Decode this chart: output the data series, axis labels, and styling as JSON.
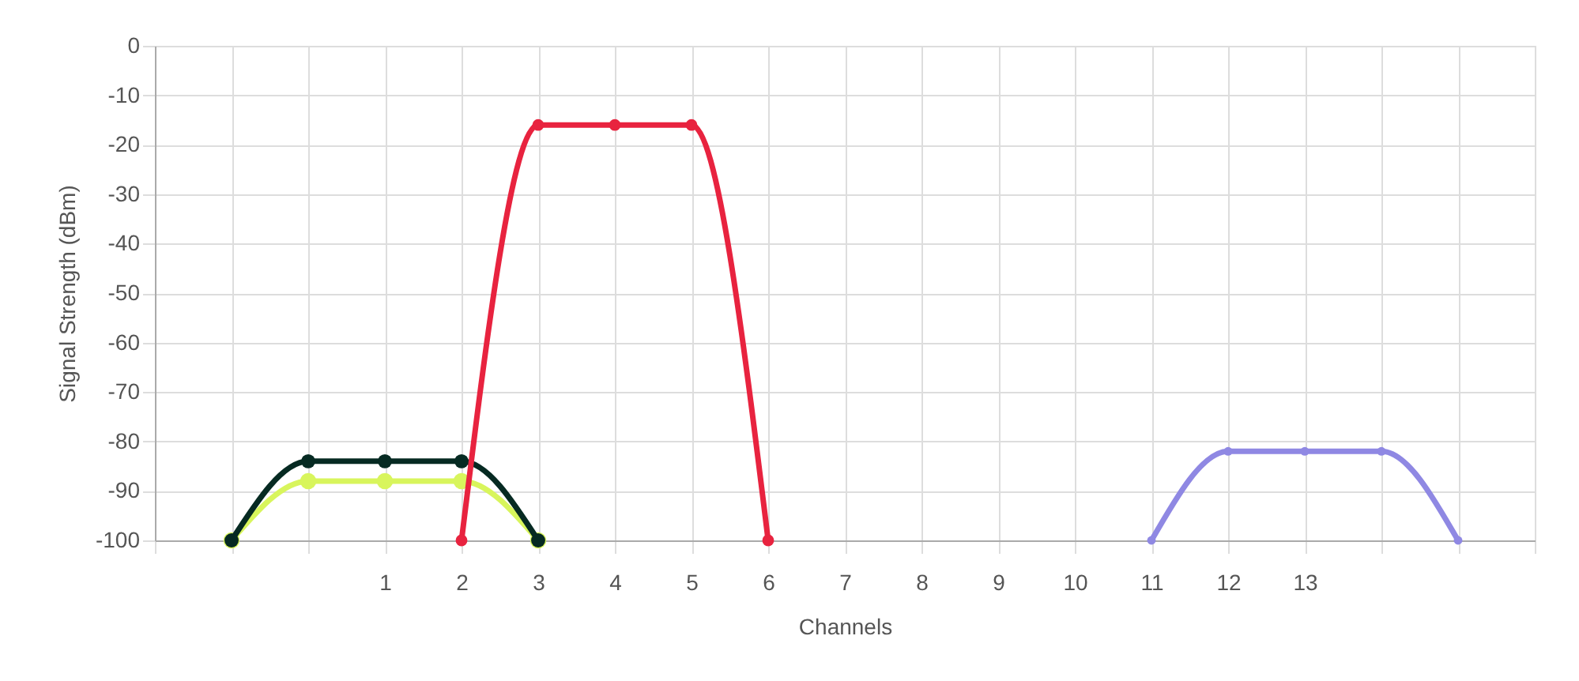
{
  "chart_data": {
    "type": "line",
    "xlabel": "Channels",
    "ylabel": "Signal Strength (dBm)",
    "xlim": [
      -2,
      16
    ],
    "ylim": [
      -100,
      0
    ],
    "xticks": [
      {
        "value": -2,
        "label": null
      },
      {
        "value": -1,
        "label": null
      },
      {
        "value": 0,
        "label": null
      },
      1,
      2,
      3,
      4,
      5,
      6,
      7,
      8,
      9,
      10,
      11,
      12,
      13,
      {
        "value": 14,
        "label": null
      },
      {
        "value": 15,
        "label": null
      },
      {
        "value": 16,
        "label": null
      }
    ],
    "yticks": [
      0,
      -10,
      -20,
      -30,
      -40,
      -50,
      -60,
      -70,
      -80,
      -90,
      -100
    ],
    "grid": true,
    "marker": "circle",
    "line_style": "solid",
    "series": [
      {
        "color": "#d8f55c",
        "x": [
          -1,
          0,
          1,
          2,
          3
        ],
        "values": [
          -100,
          -88,
          -88,
          -88,
          -100
        ]
      },
      {
        "color": "#062a22",
        "x": [
          -1,
          0,
          1,
          2,
          3
        ],
        "values": [
          -100,
          -84,
          -84,
          -84,
          -100
        ]
      },
      {
        "color": "#e8233f",
        "x": [
          2,
          3,
          4,
          5,
          6
        ],
        "values": [
          -100,
          -16,
          -16,
          -16,
          -100
        ]
      },
      {
        "color": "#8f88e3",
        "x": [
          11,
          12,
          13,
          14,
          15
        ],
        "values": [
          -100,
          -82,
          -82,
          -82,
          -100
        ]
      }
    ]
  }
}
